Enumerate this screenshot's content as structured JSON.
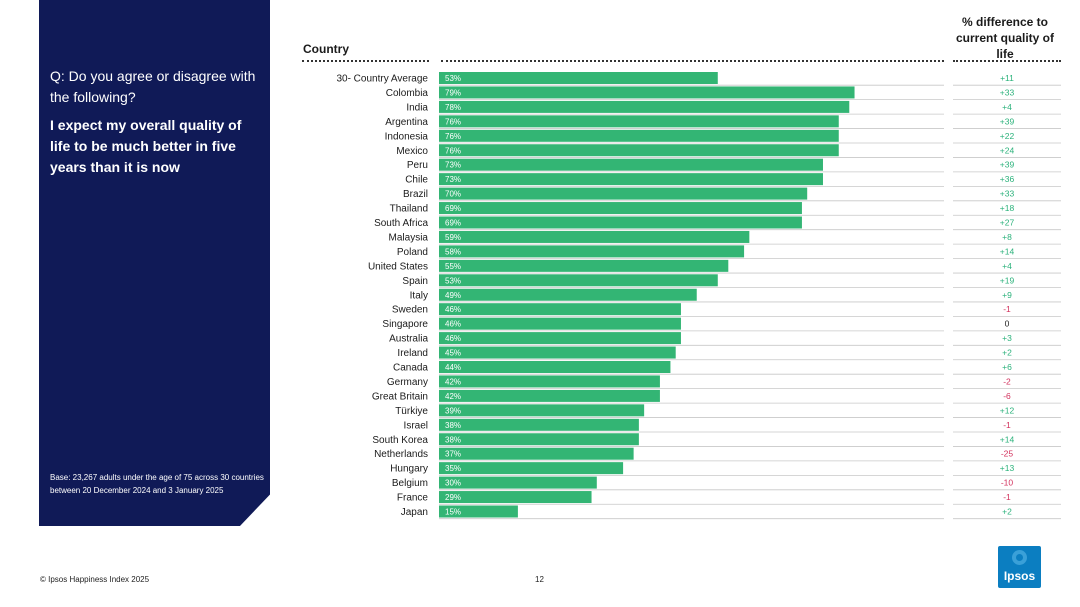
{
  "panel": {
    "question": "Q: Do you agree or disagree with the following?",
    "statement": "I expect my overall quality of life to be much better in five years than it is now",
    "base": "Base: 23,267 adults under the age of 75 across 30 countries between 20 December 2024 and 3 January 2025"
  },
  "headers": {
    "country": "Country",
    "difference": "% difference to current quality of life"
  },
  "footer": {
    "source": "© Ipsos Happiness Index 2025",
    "page": "12",
    "logo": "Ipsos"
  },
  "colors": {
    "bar": "#33b574",
    "positive": "#2bb27b",
    "negative": "#d2305c",
    "neutral": "#1b1b1b",
    "panel": "#101a57"
  },
  "chart_data": {
    "type": "bar",
    "orientation": "horizontal",
    "categories": [
      "30- Country Average",
      "Colombia",
      "India",
      "Argentina",
      "Indonesia",
      "Mexico",
      "Peru",
      "Chile",
      "Brazil",
      "Thailand",
      "South Africa",
      "Malaysia",
      "Poland",
      "United States",
      "Spain",
      "Italy",
      "Sweden",
      "Singapore",
      "Australia",
      "Ireland",
      "Canada",
      "Germany",
      "Great Britain",
      "Türkiye",
      "Israel",
      "South Korea",
      "Netherlands",
      "Hungary",
      "Belgium",
      "France",
      "Japan"
    ],
    "values": [
      53,
      79,
      78,
      76,
      76,
      76,
      73,
      73,
      70,
      69,
      69,
      59,
      58,
      55,
      53,
      49,
      46,
      46,
      46,
      45,
      44,
      42,
      42,
      39,
      38,
      38,
      37,
      35,
      30,
      29,
      15
    ],
    "value_labels": [
      "53%",
      "79%",
      "78%",
      "76%",
      "76%",
      "76%",
      "73%",
      "73%",
      "70%",
      "69%",
      "69%",
      "59%",
      "58%",
      "55%",
      "53%",
      "49%",
      "46%",
      "46%",
      "46%",
      "45%",
      "44%",
      "42%",
      "42%",
      "39%",
      "38%",
      "38%",
      "37%",
      "35%",
      "30%",
      "29%",
      "15%"
    ],
    "differences": [
      "+11",
      "+33",
      "+4",
      "+39",
      "+22",
      "+24",
      "+39",
      "+36",
      "+33",
      "+18",
      "+27",
      "+8",
      "+14",
      "+4",
      "+19",
      "+9",
      "-1",
      "0",
      "+3",
      "+2",
      "+6",
      "-2",
      "-6",
      "+12",
      "-1",
      "+14",
      "-25",
      "+13",
      "-10",
      "-1",
      "+2"
    ]
  }
}
